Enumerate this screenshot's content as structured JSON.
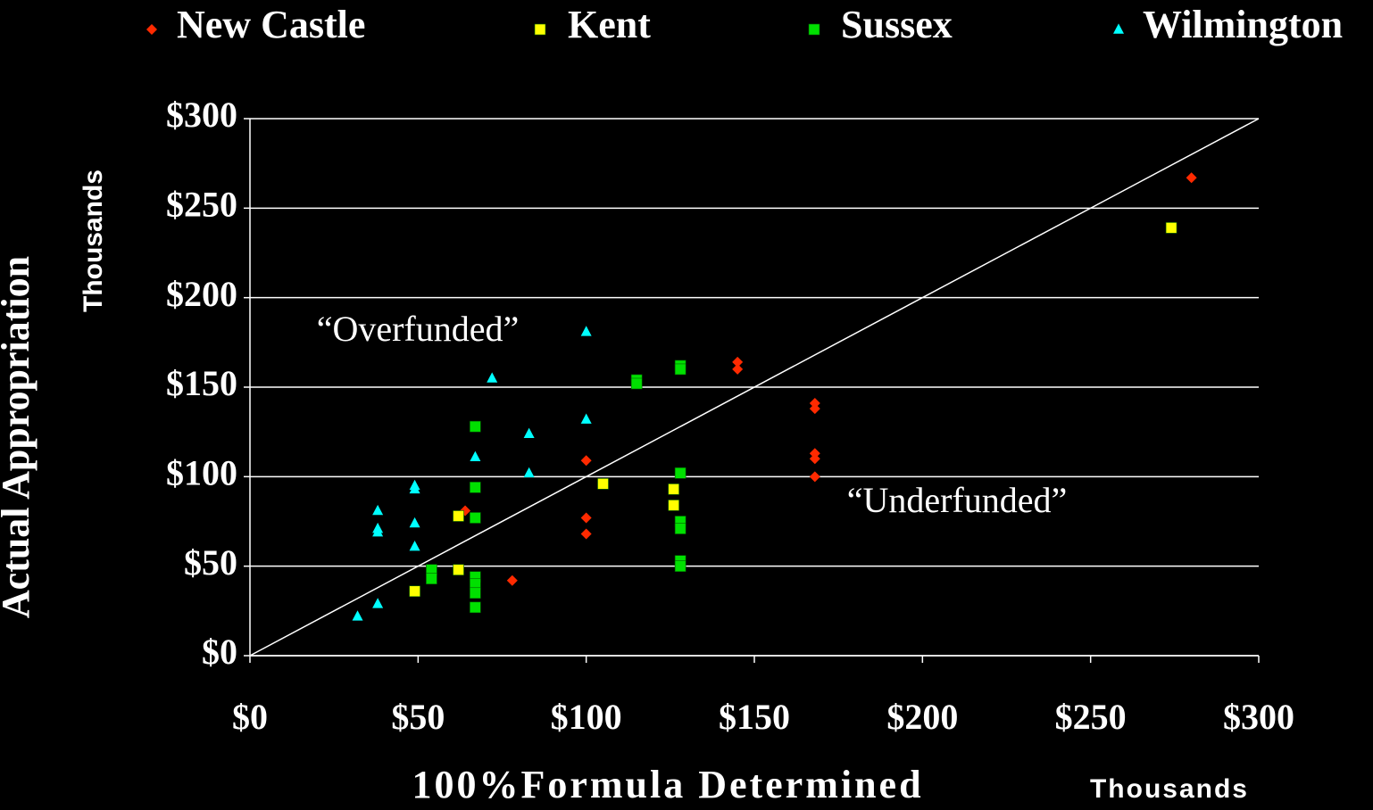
{
  "chart_data": {
    "type": "scatter",
    "xlabel": "100%Formula Determined",
    "xunit": "Thousands",
    "ylabel": "Actual Appropriation",
    "yunit": "Thousands",
    "annotations": [
      "“Overfunded”",
      "“Underfunded”"
    ],
    "xlim": [
      0,
      300
    ],
    "ylim": [
      0,
      300
    ],
    "xticks": [
      {
        "value": 0,
        "label": "$0"
      },
      {
        "value": 50,
        "label": "$50"
      },
      {
        "value": 100,
        "label": "$100"
      },
      {
        "value": 150,
        "label": "$150"
      },
      {
        "value": 200,
        "label": "$200"
      },
      {
        "value": 250,
        "label": "$250"
      },
      {
        "value": 300,
        "label": "$300"
      }
    ],
    "yticks": [
      {
        "value": 0,
        "label": "$0"
      },
      {
        "value": 50,
        "label": "$50"
      },
      {
        "value": 100,
        "label": "$100"
      },
      {
        "value": 150,
        "label": "$150"
      },
      {
        "value": 200,
        "label": "$200"
      },
      {
        "value": 250,
        "label": "$250"
      },
      {
        "value": 300,
        "label": "$300"
      }
    ],
    "grid": true,
    "diagonal": {
      "x": [
        0,
        300
      ],
      "values": [
        0,
        300
      ],
      "color": "#ffffff"
    },
    "series": [
      {
        "name": "New Castle",
        "color": "#ff2a00",
        "marker": "diamond",
        "x": [
          280,
          145,
          145,
          168,
          168,
          168,
          168,
          168,
          100,
          100,
          100,
          64,
          78
        ],
        "values": [
          267,
          164,
          160,
          141,
          138,
          113,
          110,
          100,
          109,
          77,
          68,
          81,
          42
        ]
      },
      {
        "name": "Kent",
        "color": "#ffff00",
        "marker": "square",
        "x": [
          274,
          105,
          126,
          126,
          62,
          62,
          49
        ],
        "values": [
          239,
          96,
          93,
          84,
          78,
          48,
          36
        ]
      },
      {
        "name": "Sussex",
        "color": "#00e000",
        "marker": "square",
        "x": [
          128,
          128,
          115,
          115,
          67,
          67,
          67,
          128,
          128,
          128,
          128,
          128,
          54,
          54,
          67,
          67,
          67,
          67
        ],
        "values": [
          162,
          160,
          154,
          152,
          128,
          94,
          77,
          102,
          75,
          71,
          53,
          50,
          48,
          43,
          44,
          40,
          35,
          27
        ]
      },
      {
        "name": "Wilmington",
        "color": "#00ffff",
        "marker": "triangle",
        "x": [
          100,
          72,
          100,
          83,
          67,
          83,
          49,
          49,
          38,
          38,
          38,
          49,
          49,
          38,
          32
        ],
        "values": [
          181,
          155,
          132,
          124,
          111,
          102,
          95,
          93,
          81,
          71,
          69,
          74,
          61,
          29,
          22
        ]
      }
    ]
  }
}
